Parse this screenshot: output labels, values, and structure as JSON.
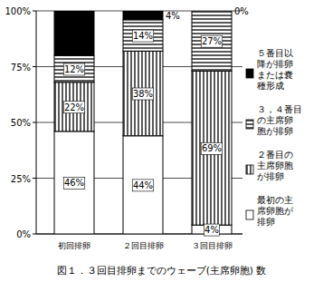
{
  "chart_data": {
    "type": "bar",
    "stacked": true,
    "title": "図１．３回目排卵までのウェーブ(主席卵胞) 数",
    "categories": [
      "初回排卵",
      "２回目排卵",
      "３回目排卵"
    ],
    "series": [
      {
        "name": "最初の主席卵胞が排卵",
        "color": "#ffffff",
        "values": [
          46,
          44,
          4
        ],
        "value_labels": [
          "46%",
          "44%",
          "4%"
        ]
      },
      {
        "name": "２番目の主席卵胞が排卵",
        "color": "#ffffff",
        "values": [
          22,
          38,
          69
        ],
        "value_labels": [
          "22%",
          "38%",
          "69%"
        ]
      },
      {
        "name": "３，４番目の主席卵胞が排卵",
        "color": "#ffffff",
        "values": [
          12,
          14,
          27
        ],
        "value_labels": [
          "12%",
          "14%",
          "27%"
        ]
      },
      {
        "name": "５番目以降が排卵または嚢種形成",
        "color": "#000000",
        "values": [
          20,
          4,
          0
        ],
        "value_labels": [
          null,
          "4%",
          "0%"
        ]
      }
    ],
    "ylim": [
      0,
      100
    ],
    "yticks": [
      {
        "value": 0,
        "label": "0%"
      },
      {
        "value": 25,
        "label": "25%"
      },
      {
        "value": 50,
        "label": "50%"
      },
      {
        "value": 75,
        "label": "75%"
      },
      {
        "value": 100,
        "label": "100%"
      }
    ],
    "grid": true,
    "data_labels": true,
    "legend": "right"
  }
}
